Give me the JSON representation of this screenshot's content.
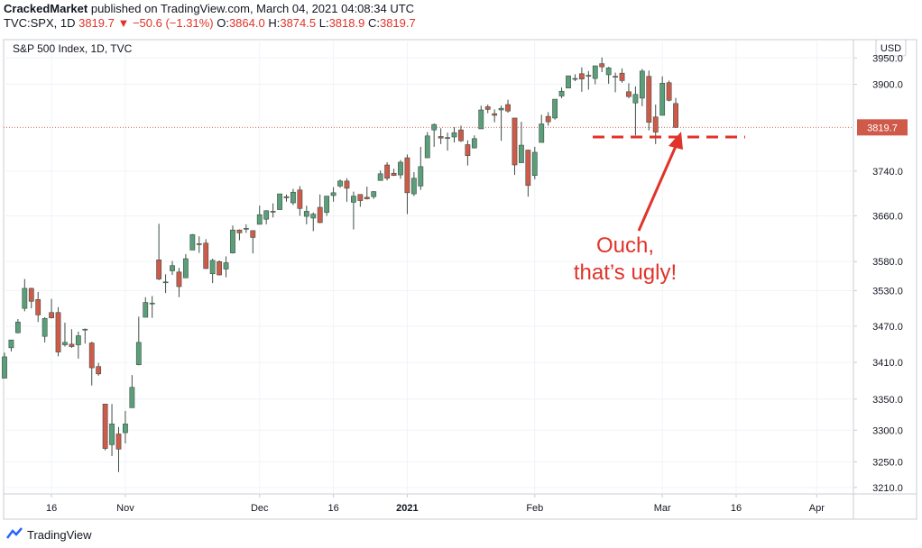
{
  "header": {
    "publisher": "CrackedMarket",
    "published": "published on TradingView.com, March 04, 2021 04:08:34 UTC",
    "symbol": "TVC:SPX, 1D",
    "last": "3819.7",
    "change": "▼ −50.6 (−1.31%)",
    "o_label": "O:",
    "o": "3864.0",
    "h_label": "H:",
    "h": "3874.5",
    "l_label": "L:",
    "l": "3818.9",
    "c_label": "C:",
    "c": "3819.7"
  },
  "footer": {
    "brand": "TradingView"
  },
  "chart_data": {
    "type": "candlestick",
    "title": "S&P 500 Index, 1D, TVC",
    "currency": "USD",
    "log_scale": true,
    "grid": true,
    "up_color": "#5b9e7a",
    "down_color": "#d05a4a",
    "annotation": "Ouch,\nthat’s ugly!",
    "annotation_color": "#e0332a",
    "last_price_label": "3819.7",
    "x": [
      "2020-10-07",
      "2020-10-08",
      "2020-10-09",
      "2020-10-12",
      "2020-10-13",
      "2020-10-14",
      "2020-10-15",
      "2020-10-16",
      "2020-10-19",
      "2020-10-20",
      "2020-10-21",
      "2020-10-22",
      "2020-10-23",
      "2020-10-26",
      "2020-10-27",
      "2020-10-28",
      "2020-10-29",
      "2020-10-30",
      "2020-11-02",
      "2020-11-03",
      "2020-11-04",
      "2020-11-05",
      "2020-11-06",
      "2020-11-09",
      "2020-11-10",
      "2020-11-11",
      "2020-11-12",
      "2020-11-13",
      "2020-11-16",
      "2020-11-17",
      "2020-11-18",
      "2020-11-19",
      "2020-11-20",
      "2020-11-23",
      "2020-11-24",
      "2020-11-25",
      "2020-11-27",
      "2020-11-30",
      "2020-12-01",
      "2020-12-02",
      "2020-12-03",
      "2020-12-04",
      "2020-12-07",
      "2020-12-08",
      "2020-12-09",
      "2020-12-10",
      "2020-12-11",
      "2020-12-14",
      "2020-12-15",
      "2020-12-16",
      "2020-12-17",
      "2020-12-18",
      "2020-12-21",
      "2020-12-22",
      "2020-12-23",
      "2020-12-24",
      "2020-12-28",
      "2020-12-29",
      "2020-12-30",
      "2020-12-31",
      "2021-01-04",
      "2021-01-05",
      "2021-01-06",
      "2021-01-07",
      "2021-01-08",
      "2021-01-11",
      "2021-01-12",
      "2021-01-13",
      "2021-01-14",
      "2021-01-15",
      "2021-01-19",
      "2021-01-20",
      "2021-01-21",
      "2021-01-22",
      "2021-01-25",
      "2021-01-26",
      "2021-01-27",
      "2021-01-28",
      "2021-01-29",
      "2021-02-01",
      "2021-02-02",
      "2021-02-03",
      "2021-02-04",
      "2021-02-05",
      "2021-02-08",
      "2021-02-09",
      "2021-02-10",
      "2021-02-11",
      "2021-02-12",
      "2021-02-16",
      "2021-02-17",
      "2021-02-18",
      "2021-02-19",
      "2021-02-22",
      "2021-02-23",
      "2021-02-24",
      "2021-02-25",
      "2021-02-26",
      "2021-03-01",
      "2021-03-02",
      "2021-03-03"
    ],
    "open": [
      3384,
      3434,
      3459,
      3500,
      3534,
      3515,
      3453,
      3493,
      3493,
      3439,
      3440,
      3439,
      3464,
      3442,
      3403,
      3342,
      3277,
      3294,
      3296,
      3336,
      3406,
      3485,
      3508,
      3583,
      3544,
      3564,
      3562,
      3552,
      3600,
      3611,
      3612,
      3559,
      3580,
      3567,
      3595,
      3635,
      3638,
      3634,
      3645,
      3654,
      3668,
      3671,
      3694,
      3683,
      3706,
      3659,
      3656,
      3675,
      3666,
      3696,
      3713,
      3722,
      3684,
      3698,
      3693,
      3694,
      3723,
      3751,
      3736,
      3733,
      3764,
      3699,
      3713,
      3764,
      3815,
      3803,
      3801,
      3802,
      3815,
      3788,
      3782,
      3817,
      3858,
      3845,
      3852,
      3862,
      3837,
      3755,
      3778,
      3732,
      3792,
      3840,
      3837,
      3878,
      3893,
      3910,
      3920,
      3917,
      3911,
      3939,
      3918,
      3915,
      3921,
      3886,
      3865,
      3874,
      3915,
      3839,
      3842,
      3903,
      3864.0
    ],
    "high": [
      3426,
      3447,
      3482,
      3550,
      3535,
      3528,
      3485,
      3516,
      3502,
      3476,
      3465,
      3461,
      3466,
      3444,
      3409,
      3342,
      3342,
      3305,
      3331,
      3389,
      3486,
      3519,
      3521,
      3646,
      3558,
      3581,
      3569,
      3593,
      3628,
      3624,
      3619,
      3585,
      3582,
      3589,
      3643,
      3636,
      3645,
      3634,
      3678,
      3670,
      3682,
      3699,
      3698,
      3708,
      3713,
      3678,
      3666,
      3698,
      3695,
      3711,
      3725,
      3727,
      3703,
      3698,
      3712,
      3704,
      3741,
      3756,
      3744,
      3760,
      3770,
      3738,
      3784,
      3811,
      3827,
      3818,
      3810,
      3820,
      3823,
      3796,
      3805,
      3860,
      3862,
      3853,
      3860,
      3871,
      3837,
      3830,
      3779,
      3784,
      3843,
      3848,
      3872,
      3894,
      3916,
      3919,
      3932,
      3925,
      3935,
      3951,
      3933,
      3922,
      3930,
      3902,
      3896,
      3929,
      3926,
      3862,
      3915,
      3907,
      3874.5
    ],
    "low": [
      3384,
      3428,
      3458,
      3495,
      3500,
      3477,
      3443,
      3483,
      3420,
      3436,
      3434,
      3416,
      3441,
      3372,
      3388,
      3268,
      3259,
      3234,
      3279,
      3336,
      3405,
      3485,
      3484,
      3548,
      3526,
      3557,
      3519,
      3552,
      3600,
      3595,
      3567,
      3543,
      3556,
      3553,
      3594,
      3617,
      3630,
      3594,
      3645,
      3645,
      3657,
      3671,
      3685,
      3679,
      3660,
      3645,
      3633,
      3647,
      3660,
      3685,
      3710,
      3685,
      3636,
      3676,
      3689,
      3690,
      3723,
      3723,
      3731,
      3726,
      3663,
      3695,
      3706,
      3764,
      3784,
      3789,
      3777,
      3792,
      3793,
      3750,
      3781,
      3817,
      3846,
      3829,
      3795,
      3847,
      3733,
      3755,
      3694,
      3725,
      3792,
      3823,
      3834,
      3874,
      3893,
      3906,
      3886,
      3890,
      3900,
      3923,
      3901,
      3885,
      3903,
      3874,
      3805,
      3859,
      3814,
      3789,
      3842,
      3868,
      3818.9
    ],
    "close": [
      3419,
      3447,
      3477,
      3534,
      3512,
      3489,
      3483,
      3484,
      3427,
      3443,
      3436,
      3454,
      3465,
      3401,
      3391,
      3271,
      3310,
      3270,
      3310,
      3369,
      3443,
      3510,
      3509,
      3550,
      3545,
      3573,
      3537,
      3585,
      3627,
      3610,
      3568,
      3582,
      3557,
      3578,
      3635,
      3630,
      3638,
      3622,
      3662,
      3669,
      3667,
      3699,
      3692,
      3702,
      3673,
      3668,
      3663,
      3648,
      3695,
      3701,
      3722,
      3709,
      3695,
      3687,
      3690,
      3703,
      3735,
      3727,
      3732,
      3756,
      3701,
      3727,
      3748,
      3804,
      3825,
      3800,
      3801,
      3810,
      3795,
      3768,
      3799,
      3852,
      3853,
      3842,
      3855,
      3850,
      3751,
      3787,
      3714,
      3774,
      3826,
      3830,
      3872,
      3887,
      3916,
      3911,
      3910,
      3916,
      3935,
      3933,
      3931,
      3914,
      3907,
      3877,
      3881,
      3925,
      3829,
      3811,
      3902,
      3870,
      3819.7
    ],
    "xlim": [
      "2020-10-07",
      "2021-04-08"
    ],
    "xticks": [
      {
        "value": "2020-10-16",
        "label": "16"
      },
      {
        "value": "2020-11-02",
        "label": "Nov"
      },
      {
        "value": "2020-12-01",
        "label": "Dec"
      },
      {
        "value": "2020-12-16",
        "label": "16"
      },
      {
        "value": "2021-01-04",
        "label": "2021"
      },
      {
        "value": "2021-02-01",
        "label": "Feb"
      },
      {
        "value": "2021-03-01",
        "label": "Mar"
      },
      {
        "value": "2021-03-16",
        "label": "16"
      },
      {
        "value": "2021-04-01",
        "label": "Apr"
      }
    ],
    "ylim": [
      3200,
      3985
    ],
    "yticks": [
      {
        "value": 3210,
        "label": "3210.0"
      },
      {
        "value": 3250,
        "label": "3250.0"
      },
      {
        "value": 3300,
        "label": "3300.0"
      },
      {
        "value": 3350,
        "label": "3350.0"
      },
      {
        "value": 3410,
        "label": "3410.0"
      },
      {
        "value": 3470,
        "label": "3470.0"
      },
      {
        "value": 3530,
        "label": "3530.0"
      },
      {
        "value": 3580,
        "label": "3580.0"
      },
      {
        "value": 3660,
        "label": "3660.0"
      },
      {
        "value": 3740,
        "label": "3740.0"
      },
      {
        "value": 3900,
        "label": "3900.0"
      },
      {
        "value": 3950,
        "label": "3950.0"
      }
    ]
  }
}
